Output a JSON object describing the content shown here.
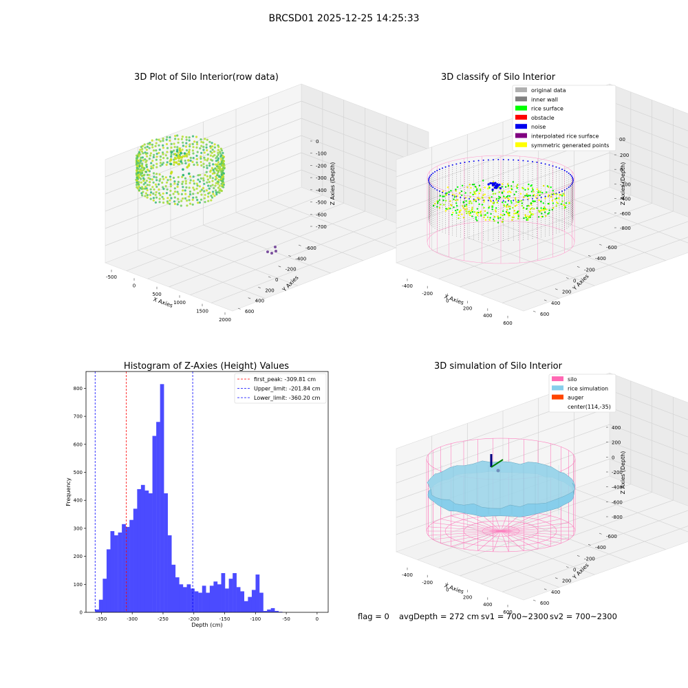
{
  "figure": {
    "suptitle": "BRCSD01 2025-12-25 14:25:33",
    "status": {
      "flag": "flag = 0",
      "avg": "avgDepth = 272 cm",
      "sv1": "sv1 = 700~2300",
      "sv2": "sv2 = 700~2300"
    }
  },
  "chart_data": [
    {
      "type": "scatter",
      "title": "3D Plot of Silo Interior(row data)",
      "xlabel": "X Axies",
      "ylabel": "Y Axies",
      "zlabel": "Z Axies (Depth)",
      "x_ticks": [
        "-500",
        "0",
        "500",
        "1000",
        "1500",
        "2000"
      ],
      "y_ticks": [
        "-600",
        "-400",
        "-200",
        "0",
        "200",
        "400",
        "600"
      ],
      "z_ticks": [
        "0",
        "-100",
        "-200",
        "-300",
        "-400",
        "-500",
        "-600",
        "-700"
      ],
      "colormap": "viridis",
      "outlier_color": "#7b4f9e"
    },
    {
      "type": "scatter",
      "title": "3D classify of Silo Interior",
      "xlabel": "X Axies",
      "ylabel": "Y Axies",
      "zlabel": "Z Axies (Depth)",
      "x_ticks": [
        "-400",
        "-200",
        "0",
        "200",
        "400",
        "600"
      ],
      "y_ticks": [
        "-600",
        "-400",
        "-200",
        "0",
        "200",
        "400",
        "600"
      ],
      "z_ticks": [
        "200",
        "0",
        "-200",
        "-400",
        "-600",
        "-800"
      ],
      "z_top_partial": "00",
      "legend": [
        {
          "label": "original data",
          "color": "#b0b0b0"
        },
        {
          "label": "inner wall",
          "color": "#808080"
        },
        {
          "label": "rice surface",
          "color": "#00ff00"
        },
        {
          "label": "obstacle",
          "color": "#ff0000"
        },
        {
          "label": "noise",
          "color": "#0000ee"
        },
        {
          "label": "interpolated rice surface",
          "color": "#800080"
        },
        {
          "label": "symmetric generated points",
          "color": "#ffff00"
        }
      ]
    },
    {
      "type": "bar",
      "title": "Histogram of Z-Axies (Height) Values",
      "xlabel": "Depth (cm)",
      "ylabel": "Frequency",
      "xlim": [
        -375,
        18
      ],
      "ylim": [
        0,
        860
      ],
      "bin_width": 6.2,
      "bin_start": -360.2,
      "x_ticks": [
        -350,
        -300,
        -250,
        -200,
        -150,
        -100,
        -50,
        0
      ],
      "y_ticks": [
        0,
        100,
        200,
        300,
        400,
        500,
        600,
        700,
        800
      ],
      "bar_color": "#4b4bff",
      "values": [
        10,
        45,
        120,
        225,
        290,
        275,
        285,
        315,
        305,
        330,
        370,
        440,
        455,
        435,
        425,
        630,
        680,
        815,
        425,
        275,
        170,
        125,
        100,
        90,
        100,
        85,
        75,
        70,
        95,
        70,
        95,
        110,
        100,
        140,
        85,
        120,
        140,
        90,
        75,
        40,
        55,
        80,
        135,
        70,
        5,
        10,
        15,
        5,
        2
      ],
      "lines": [
        {
          "label": "first_peak: -309.81 cm",
          "x": -309.81,
          "color": "#ff0000"
        },
        {
          "label": "Upper_limit: -201.84 cm",
          "x": -201.84,
          "color": "#0000ff"
        },
        {
          "label": "Lower_limit: -360.20 cm",
          "x": -360.2,
          "color": "#0000ff"
        }
      ]
    },
    {
      "type": "surface",
      "title": "3D simulation of Silo Interior",
      "xlabel": "X Axies",
      "ylabel": "Y Axies",
      "zlabel": "Z Axies (Depth)",
      "x_ticks": [
        "-400",
        "-200",
        "0",
        "200",
        "400",
        "600"
      ],
      "y_ticks": [
        "-600",
        "-400",
        "-200",
        "0",
        "200",
        "400",
        "600"
      ],
      "z_ticks": [
        "400",
        "200",
        "0",
        "-200",
        "-400",
        "-600",
        "-800"
      ],
      "legend": [
        {
          "label": "silo",
          "color": "#ff69b4"
        },
        {
          "label": "rice simulation",
          "color": "#87ceeb"
        },
        {
          "label": "auger",
          "color": "#ff4500"
        },
        {
          "label": "center(114,-35)",
          "color": ""
        }
      ]
    }
  ]
}
